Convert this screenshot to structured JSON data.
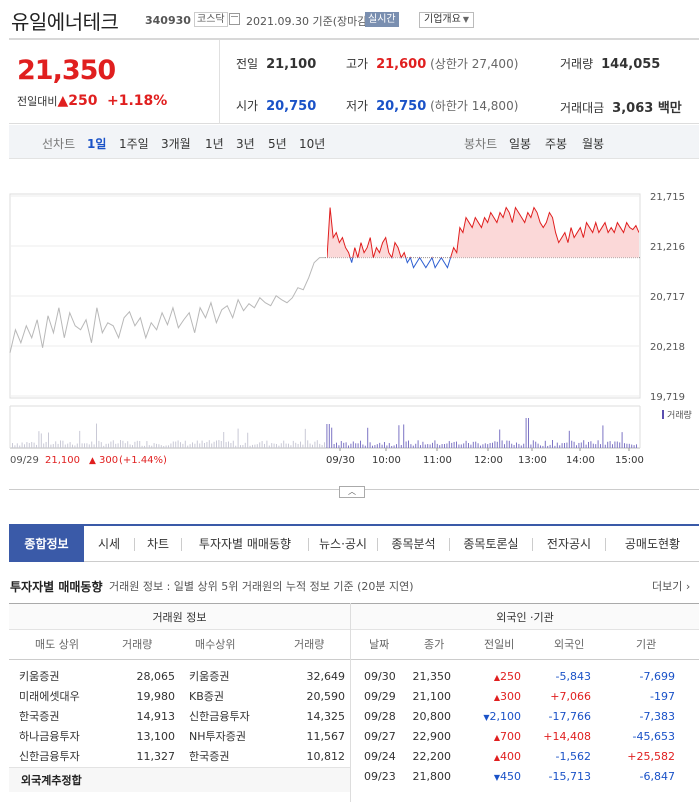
{
  "header": {
    "name": "유일에너테크",
    "code": "340930",
    "market": "코스닥",
    "date": "2021.09.30 기준(장마감)",
    "realtime": "실시간",
    "info_button": "기업개요"
  },
  "price": {
    "current": "21,350",
    "vs_label": "전일대비",
    "change": "250",
    "change_pct": "+1.18%",
    "prev_label": "전일",
    "prev": "21,100",
    "high_label": "고가",
    "high": "21,600",
    "upper_limit": "(상한가 27,400)",
    "volume_label": "거래량",
    "volume": "144,055",
    "open_label": "시가",
    "open": "20,750",
    "low_label": "저가",
    "low": "20,750",
    "lower_limit": "(하한가 14,800)",
    "amount_label": "거래대금",
    "amount": "3,063 백만"
  },
  "period_bar": {
    "line_label": "선차트",
    "line_periods": [
      "1일",
      "1주일",
      "3개월",
      "1년",
      "3년",
      "5년",
      "10년"
    ],
    "candle_label": "봉차트",
    "candle_periods": [
      "일봉",
      "주봉",
      "월봉"
    ]
  },
  "chart_data": {
    "type": "line",
    "y_ticks": [
      "21,715",
      "21,216",
      "20,717",
      "20,218",
      "19,719"
    ],
    "ylim": [
      19719,
      21715
    ],
    "baseline": 21100,
    "volume_label": "거래량",
    "prev_day_label": "09/29",
    "prev_day_close": "21,100",
    "prev_day_change": "300",
    "prev_day_change_pct": "(+1.44%)",
    "x_ticks": [
      "09/30",
      "10:00",
      "11:00",
      "12:00",
      "13:00",
      "14:00",
      "15:00"
    ],
    "prev_day_series": [
      20150,
      20380,
      20250,
      20420,
      20300,
      20480,
      20200,
      20520,
      20350,
      20600,
      20300,
      20550,
      20420,
      20380,
      20480,
      20250,
      20600,
      20350,
      20450,
      20420,
      20300,
      20500,
      20560,
      20420,
      20500,
      20300,
      20450,
      20380,
      20550,
      20430,
      20600,
      20400,
      20480,
      20550,
      20350,
      20600,
      20500,
      20650,
      20450,
      20580,
      20620,
      20500,
      20680,
      20570,
      20640,
      20600,
      20700,
      20650,
      20620,
      20720,
      20680,
      20650,
      20700,
      20800,
      20780,
      20900,
      21050,
      21100,
      21100
    ],
    "today_series": [
      21100,
      21600,
      21300,
      21350,
      21250,
      21300,
      21200,
      21150,
      21050,
      21200,
      21100,
      21250,
      21150,
      21200,
      21300,
      21100,
      21200,
      21150,
      21250,
      21300,
      21150,
      21100,
      21250,
      21200,
      21100,
      21150,
      21050,
      21100,
      21000,
      21050,
      21100,
      21050,
      21000,
      21050,
      21100,
      21000,
      21050,
      21100,
      21050,
      21000,
      21100,
      21200,
      21150,
      21400,
      21350,
      21500,
      21450,
      21400,
      21500,
      21450,
      21400,
      21500,
      21450,
      21550,
      21500,
      21450,
      21550,
      21500,
      21600,
      21550,
      21450,
      21600,
      21550,
      21500,
      21450,
      21550,
      21500,
      21600,
      21550,
      21450,
      21400,
      21450,
      21550,
      21500,
      21350,
      21250,
      21300,
      21350,
      21250,
      21400,
      21300,
      21350,
      21400,
      21300,
      21450,
      21400,
      21350,
      21450,
      21350,
      21400,
      21450,
      21350,
      21400,
      21350,
      21450,
      21400,
      21350,
      21450,
      21400,
      21380,
      21420,
      21350
    ]
  },
  "tabs": [
    "종합정보",
    "시세",
    "차트",
    "투자자별 매매동향",
    "뉴스·공시",
    "종목분석",
    "종목토론실",
    "전자공시",
    "공매도현황"
  ],
  "investor": {
    "title": "투자자별 매매동향",
    "desc": "거래원 정보 : 일별 상위 5위 거래원의 누적 정보 기준 (20분 지연)",
    "more": "더보기",
    "broker_header": "거래원 정보",
    "foreign_header": "외국인 ·기관",
    "broker_cols": [
      "매도 상위",
      "거래량",
      "매수상위",
      "거래량"
    ],
    "foreign_cols": [
      "날짜",
      "종가",
      "전일비",
      "외국인",
      "기관"
    ],
    "brokers": [
      {
        "sell": "키움증권",
        "sell_vol": "28,065",
        "buy": "키움증권",
        "buy_vol": "32,649"
      },
      {
        "sell": "미래에셋대우",
        "sell_vol": "19,980",
        "buy": "KB증권",
        "buy_vol": "20,590"
      },
      {
        "sell": "한국증권",
        "sell_vol": "14,913",
        "buy": "신한금융투자",
        "buy_vol": "14,325"
      },
      {
        "sell": "하나금융투자",
        "sell_vol": "13,100",
        "buy": "NH투자증권",
        "buy_vol": "11,567"
      },
      {
        "sell": "신한금융투자",
        "sell_vol": "11,327",
        "buy": "한국증권",
        "buy_vol": "10,812"
      }
    ],
    "foreign_total": "외국계추정합",
    "foreign_rows": [
      {
        "date": "09/30",
        "close": "21,350",
        "dir": "up",
        "chg": "250",
        "foreign": "-5,843",
        "inst": "-7,699"
      },
      {
        "date": "09/29",
        "close": "21,100",
        "dir": "up",
        "chg": "300",
        "foreign": "+7,066",
        "inst": "-197"
      },
      {
        "date": "09/28",
        "close": "20,800",
        "dir": "down",
        "chg": "2,100",
        "foreign": "-17,766",
        "inst": "-7,383"
      },
      {
        "date": "09/27",
        "close": "22,900",
        "dir": "up",
        "chg": "700",
        "foreign": "+14,408",
        "inst": "-45,653"
      },
      {
        "date": "09/24",
        "close": "22,200",
        "dir": "up",
        "chg": "400",
        "foreign": "-1,562",
        "inst": "+25,582"
      },
      {
        "date": "09/23",
        "close": "21,800",
        "dir": "down",
        "chg": "450",
        "foreign": "-15,713",
        "inst": "-6,847"
      }
    ]
  }
}
